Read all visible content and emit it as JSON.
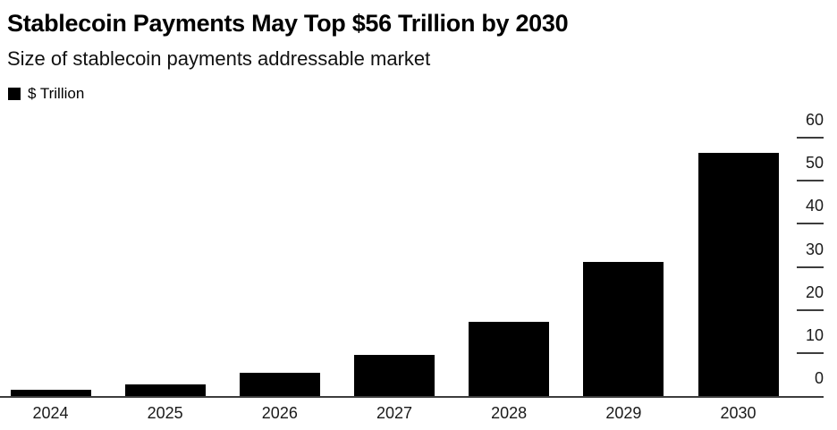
{
  "header": {
    "title": "Stablecoin Payments May Top $56 Trillion by 2030",
    "subtitle": "Size of stablecoin payments addressable market"
  },
  "legend": {
    "label": "$ Trillion",
    "swatch_color": "#000000"
  },
  "colors": {
    "background": "#ffffff",
    "bar": "#000000",
    "axis": "#3d3d3d",
    "tick": "#3d3d3d",
    "label_text": "#1a1a1a"
  },
  "chart_data": {
    "type": "bar",
    "title": "Stablecoin Payments May Top $56 Trillion by 2030",
    "subtitle": "Size of stablecoin payments addressable market",
    "categories": [
      "2024",
      "2025",
      "2026",
      "2027",
      "2028",
      "2029",
      "2030"
    ],
    "values": [
      1.5,
      2.8,
      5.3,
      9.5,
      17.3,
      31.2,
      56.5
    ],
    "series_name": "$ Trillion",
    "xlabel": "",
    "ylabel": "$ Trillion",
    "ylim": [
      0,
      60
    ],
    "yticks": [
      0,
      10,
      20,
      30,
      40,
      50,
      60
    ],
    "y_axis_side": "right",
    "grid": false,
    "legend_position": "top-left",
    "bar_color": "#000000"
  }
}
